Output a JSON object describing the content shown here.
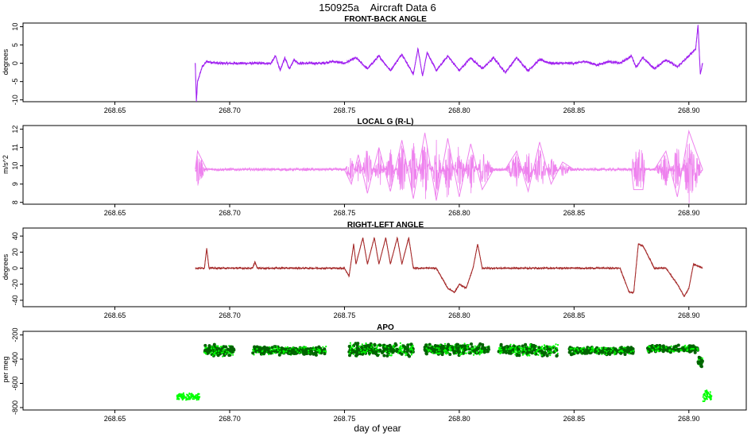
{
  "title": "150925a    Aircraft Data 6",
  "xlabel": "day of year",
  "chart_data": [
    {
      "type": "line",
      "title": "FRONT-BACK ANGLE",
      "ylabel": "degrees",
      "color": "#a020f0",
      "xlim": [
        268.61,
        268.925
      ],
      "ylim": [
        -10.5,
        11
      ],
      "xticks": [
        268.65,
        268.7,
        268.75,
        268.8,
        268.85,
        268.9
      ],
      "yticks": [
        -10,
        -5,
        0,
        5,
        10
      ],
      "x_range": [
        268.685,
        268.906
      ],
      "series": [
        {
          "x": [
            268.685,
            268.6855,
            268.686,
            268.688,
            268.69,
            268.695,
            268.7,
            268.705,
            268.71,
            268.715,
            268.718,
            268.72,
            268.722,
            268.724,
            268.726,
            268.728,
            268.73,
            268.735,
            268.74,
            268.745,
            268.75,
            268.755,
            268.76,
            268.765,
            268.77,
            268.775,
            268.78,
            268.782,
            268.784,
            268.786,
            268.79,
            268.795,
            268.8,
            268.805,
            268.81,
            268.815,
            268.82,
            268.825,
            268.83,
            268.835,
            268.84,
            268.845,
            268.85,
            268.855,
            268.86,
            268.865,
            268.87,
            268.875,
            268.877,
            268.88,
            268.885,
            268.89,
            268.895,
            268.9,
            268.903,
            268.904,
            268.905,
            268.906
          ],
          "values": [
            0,
            -10.5,
            -5,
            -1,
            0.5,
            0,
            0,
            0,
            0,
            0,
            0,
            2,
            -2,
            1.5,
            -1.5,
            1,
            0,
            0,
            0,
            0.5,
            0,
            1.5,
            -1.5,
            2,
            -2,
            2.5,
            -3,
            4,
            -3.5,
            3,
            -2,
            2,
            -2,
            1.5,
            -1.5,
            1.5,
            -2.5,
            1.5,
            -2,
            1,
            0,
            0,
            0,
            0.5,
            -0.5,
            0.5,
            0,
            2,
            -1,
            1.5,
            -1.5,
            1,
            -1,
            2,
            4,
            10.5,
            -3,
            0
          ]
        }
      ]
    },
    {
      "type": "line",
      "title": "LOCAL G (R-L)",
      "ylabel": "m/s^2",
      "color": "#ee82ee",
      "xlim": [
        268.61,
        268.925
      ],
      "ylim": [
        7.9,
        12.2
      ],
      "xticks": [
        268.65,
        268.7,
        268.75,
        268.8,
        268.85,
        268.9
      ],
      "yticks": [
        8,
        9,
        10,
        11,
        12
      ],
      "x_range": [
        268.685,
        268.906
      ],
      "series": [
        {
          "x": [
            268.685,
            268.686,
            268.69,
            268.7,
            268.72,
            268.74,
            268.75,
            268.753,
            268.756,
            268.76,
            268.765,
            268.77,
            268.775,
            268.78,
            268.785,
            268.79,
            268.795,
            268.8,
            268.805,
            268.81,
            268.815,
            268.82,
            268.825,
            268.83,
            268.835,
            268.84,
            268.845,
            268.85,
            268.86,
            268.87,
            268.875,
            268.876,
            268.88,
            268.881,
            268.885,
            268.89,
            268.895,
            268.9,
            268.906
          ],
          "values": [
            9.8,
            10.8,
            9.8,
            9.8,
            9.8,
            9.8,
            9.8,
            9.0,
            10.6,
            8.5,
            11.0,
            8.6,
            11.4,
            8.2,
            11.8,
            8.1,
            11.5,
            8.3,
            11.2,
            8.7,
            9.8,
            9.8,
            10.8,
            8.6,
            11.3,
            9.0,
            10.2,
            9.8,
            9.8,
            9.8,
            9.8,
            8.7,
            8.7,
            9.8,
            9.8,
            10.8,
            8.3,
            11.9,
            9.8
          ]
        }
      ]
    },
    {
      "type": "line",
      "title": "RIGHT-LEFT ANGLE",
      "ylabel": "degrees",
      "color": "#a52a2a",
      "xlim": [
        268.61,
        268.925
      ],
      "ylim": [
        -48,
        50
      ],
      "xticks": [
        268.65,
        268.7,
        268.75,
        268.8,
        268.85,
        268.9
      ],
      "yticks": [
        -40,
        -20,
        0,
        20,
        40
      ],
      "x_range": [
        268.685,
        268.906
      ],
      "series": [
        {
          "x": [
            268.685,
            268.686,
            268.689,
            268.69,
            268.691,
            268.7,
            268.71,
            268.711,
            268.712,
            268.72,
            268.74,
            268.745,
            268.75,
            268.752,
            268.754,
            268.755,
            268.758,
            268.76,
            268.763,
            268.765,
            268.768,
            268.77,
            268.773,
            268.775,
            268.778,
            268.78,
            268.785,
            268.79,
            268.795,
            268.798,
            268.8,
            268.803,
            268.806,
            268.808,
            268.81,
            268.815,
            268.82,
            268.83,
            268.84,
            268.85,
            268.86,
            268.87,
            268.874,
            268.876,
            268.877,
            268.878,
            268.88,
            268.885,
            268.89,
            268.895,
            268.898,
            268.9,
            268.902,
            268.906
          ],
          "values": [
            0,
            0,
            0,
            25,
            0,
            0,
            0,
            8,
            0,
            0,
            0,
            0,
            0,
            -10,
            30,
            5,
            38,
            5,
            38,
            5,
            38,
            5,
            38,
            5,
            38,
            0,
            0,
            0,
            -25,
            -30,
            -20,
            -25,
            0,
            30,
            0,
            0,
            0,
            0,
            0,
            0,
            0,
            0,
            -30,
            -30,
            0,
            30,
            28,
            0,
            0,
            -20,
            -35,
            -25,
            5,
            0
          ]
        }
      ]
    },
    {
      "type": "scatter",
      "title": "APO",
      "ylabel": "per meg",
      "colors": [
        "#00ff00",
        "#006400"
      ],
      "xlim": [
        268.61,
        268.925
      ],
      "ylim": [
        -820,
        -170
      ],
      "xticks": [
        268.65,
        268.7,
        268.75,
        268.8,
        268.85,
        268.9
      ],
      "yticks": [
        -800,
        -600,
        -400,
        -200
      ],
      "segments": [
        {
          "x0": 268.677,
          "x1": 268.687,
          "center": -710,
          "spread": 20,
          "shade": "light"
        },
        {
          "x0": 268.689,
          "x1": 268.702,
          "center": -330,
          "spread": 35,
          "shade": "both"
        },
        {
          "x0": 268.71,
          "x1": 268.742,
          "center": -330,
          "spread": 25,
          "shade": "both"
        },
        {
          "x0": 268.752,
          "x1": 268.78,
          "center": -320,
          "spread": 40,
          "shade": "both"
        },
        {
          "x0": 268.785,
          "x1": 268.813,
          "center": -320,
          "spread": 35,
          "shade": "both"
        },
        {
          "x0": 268.817,
          "x1": 268.843,
          "center": -325,
          "spread": 35,
          "shade": "both"
        },
        {
          "x0": 268.848,
          "x1": 268.876,
          "center": -330,
          "spread": 22,
          "shade": "both"
        },
        {
          "x0": 268.882,
          "x1": 268.904,
          "center": -315,
          "spread": 22,
          "shade": "both"
        },
        {
          "x0": 268.904,
          "x1": 268.906,
          "center": -420,
          "spread": 30,
          "shade": "both"
        },
        {
          "x0": 268.906,
          "x1": 268.91,
          "center": -700,
          "spread": 40,
          "shade": "light"
        }
      ]
    }
  ]
}
